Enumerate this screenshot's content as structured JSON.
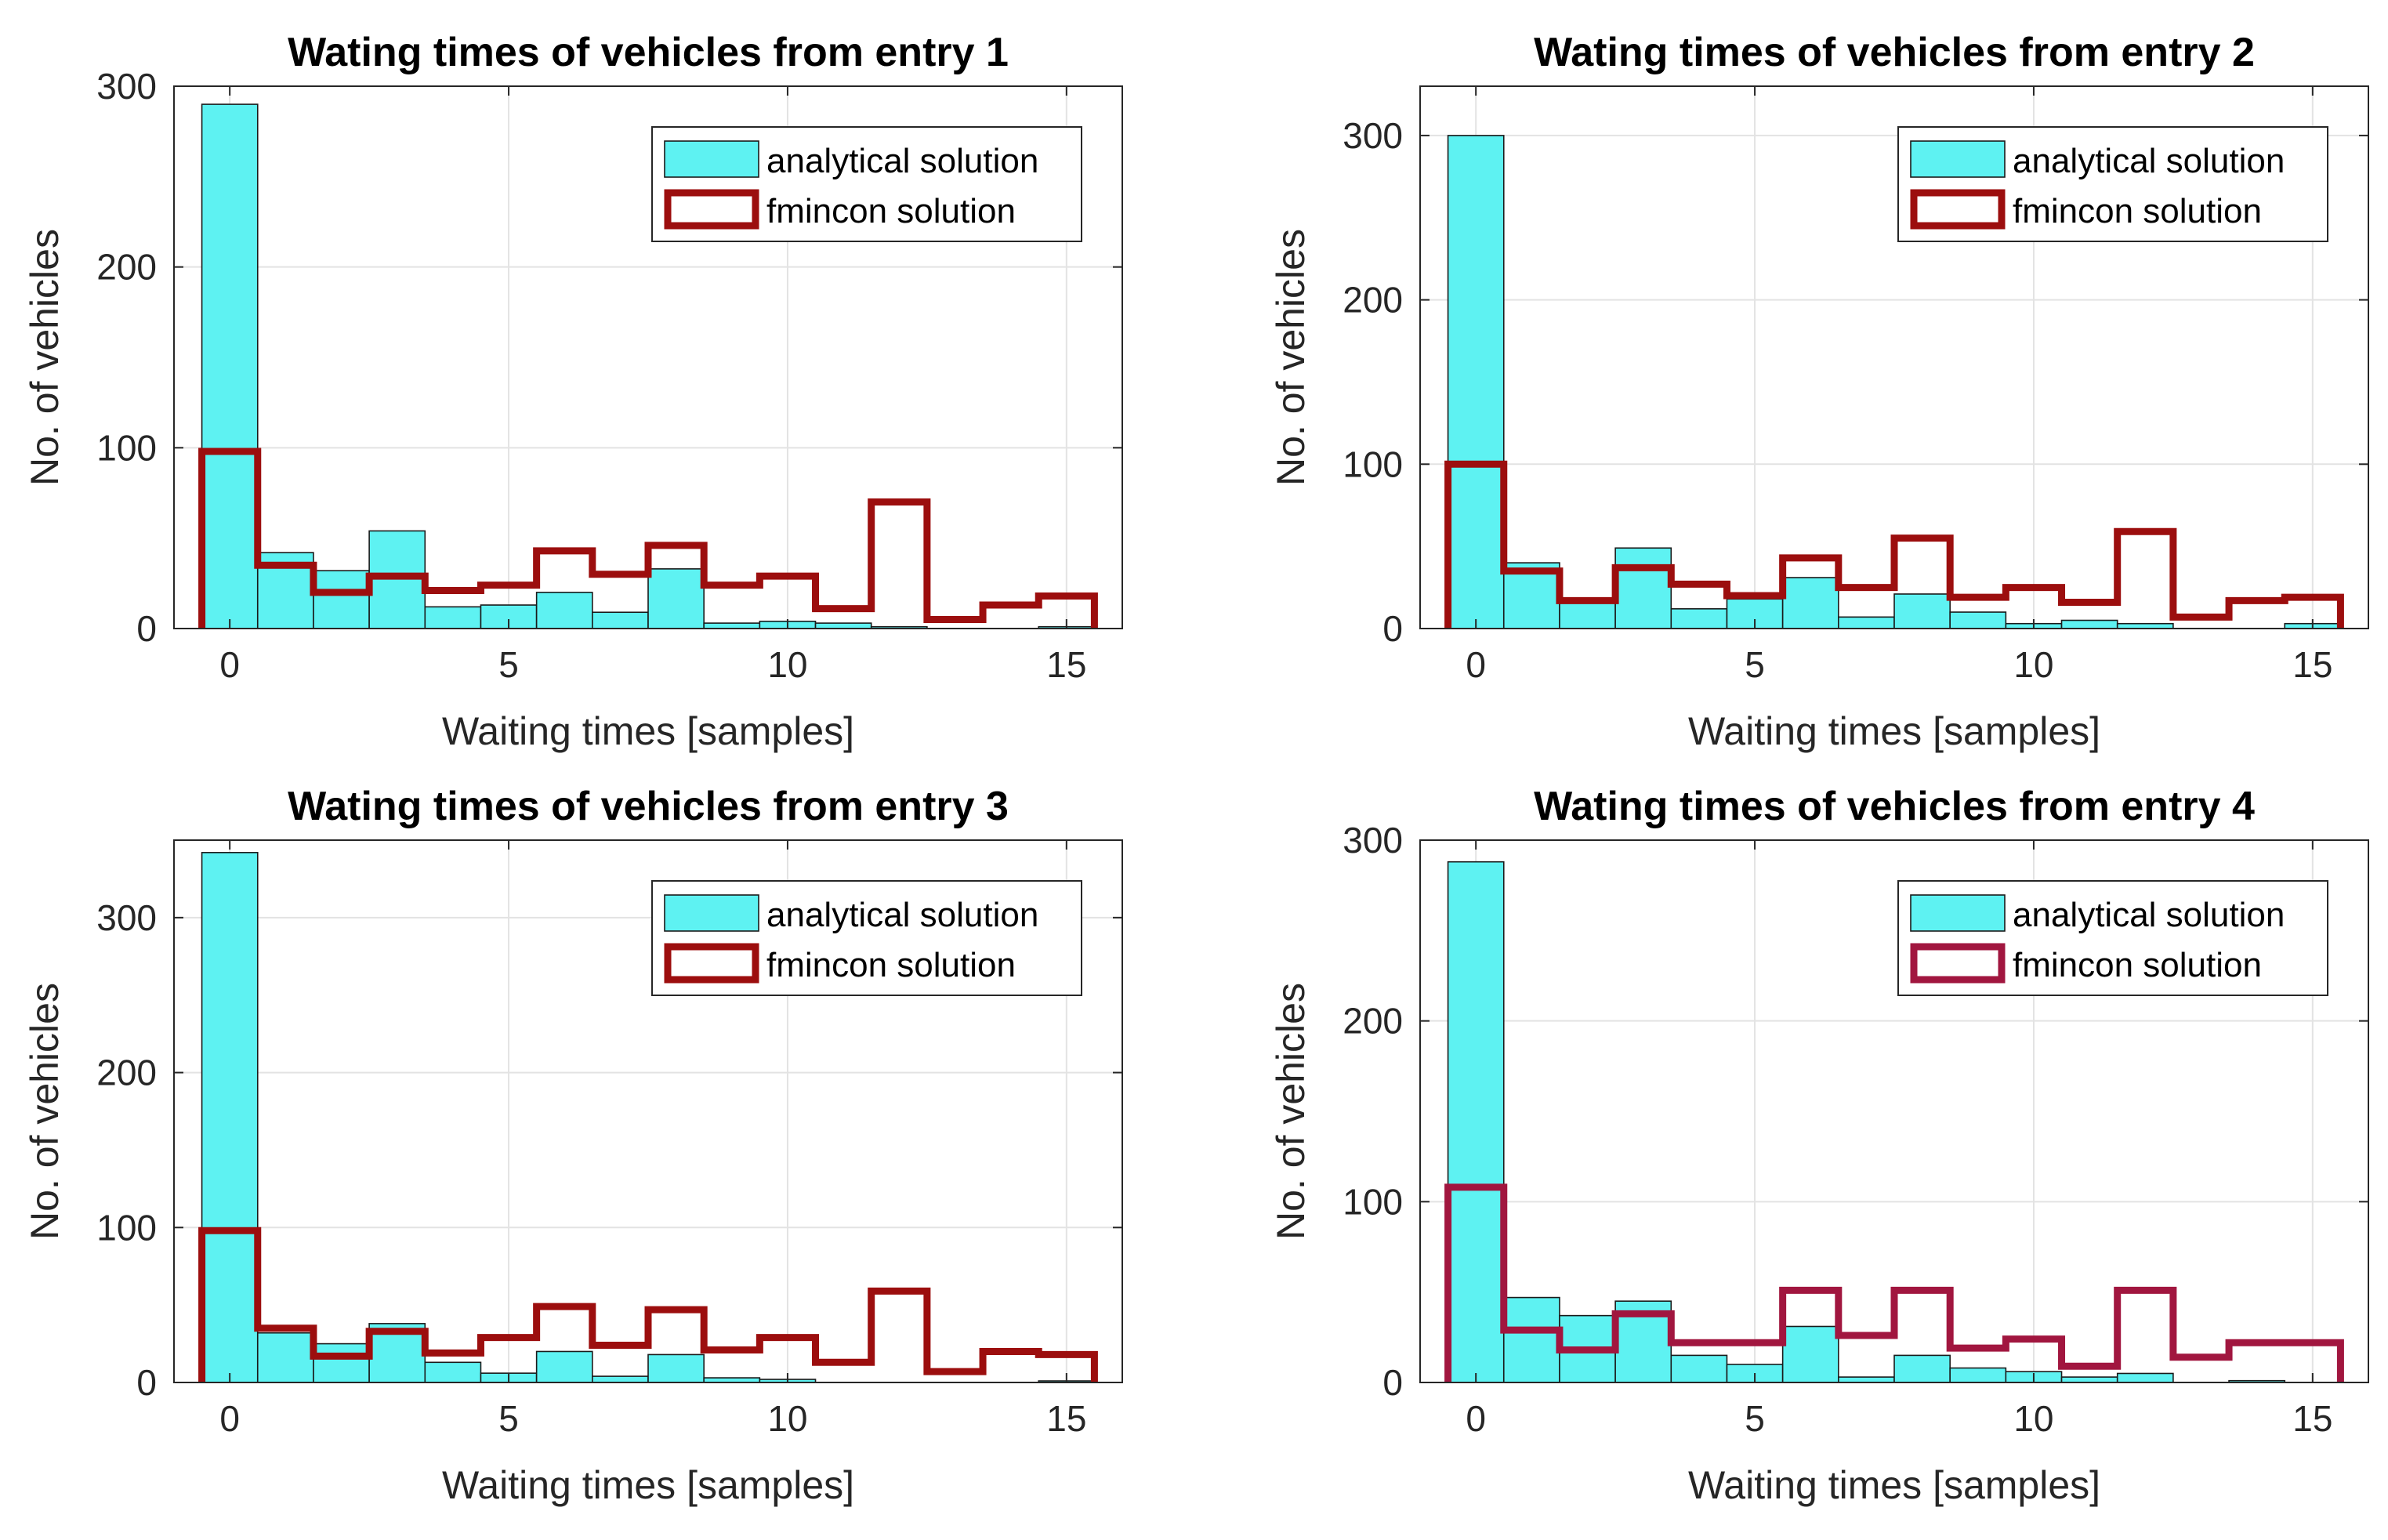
{
  "chart_data": [
    {
      "type": "bar",
      "title": "Wating times of vehicles from entry 1",
      "xlabel": "Waiting times [samples]",
      "ylabel": "No. of vehicles",
      "xlim": [
        -1,
        16
      ],
      "ylim": [
        0,
        300
      ],
      "xticks": [
        0,
        5,
        10,
        15
      ],
      "yticks": [
        0,
        100,
        200,
        300
      ],
      "grid": true,
      "legend_position": "top-right",
      "bins": [
        0,
        1,
        2,
        3,
        4,
        5,
        6,
        7,
        8,
        9,
        10,
        11,
        12,
        13,
        14,
        15
      ],
      "series": [
        {
          "name": "analytical solution",
          "style": "filled-bar",
          "color": "#5ef2f2",
          "values": [
            290,
            42,
            32,
            54,
            12,
            13,
            20,
            9,
            33,
            3,
            4,
            3,
            1,
            0,
            0,
            1
          ]
        },
        {
          "name": "fmincon solution",
          "style": "stairs",
          "color": "#9c0e0e",
          "values": [
            98,
            35,
            20,
            29,
            21,
            24,
            43,
            30,
            46,
            24,
            29,
            11,
            70,
            5,
            13,
            18
          ]
        }
      ]
    },
    {
      "type": "bar",
      "title": "Wating times of vehicles from entry 2",
      "xlabel": "Waiting times [samples]",
      "ylabel": "No. of vehicles",
      "xlim": [
        -1,
        16
      ],
      "ylim": [
        0,
        330
      ],
      "xticks": [
        0,
        5,
        10,
        15
      ],
      "yticks": [
        0,
        100,
        200,
        300
      ],
      "grid": true,
      "legend_position": "top-right",
      "bins": [
        0,
        1,
        2,
        3,
        4,
        5,
        6,
        7,
        8,
        9,
        10,
        11,
        12,
        13,
        14,
        15
      ],
      "series": [
        {
          "name": "analytical solution",
          "style": "filled-bar",
          "color": "#5ef2f2",
          "values": [
            300,
            40,
            18,
            49,
            12,
            18,
            31,
            7,
            21,
            10,
            3,
            5,
            3,
            0,
            0,
            3
          ]
        },
        {
          "name": "fmincon solution",
          "style": "stairs",
          "color": "#9c0e0e",
          "values": [
            100,
            35,
            17,
            37,
            27,
            20,
            43,
            25,
            55,
            19,
            25,
            16,
            59,
            7,
            17,
            19
          ]
        }
      ]
    },
    {
      "type": "bar",
      "title": "Wating times of vehicles from entry 3",
      "xlabel": "Waiting times [samples]",
      "ylabel": "No. of vehicles",
      "xlim": [
        -1,
        16
      ],
      "ylim": [
        0,
        350
      ],
      "xticks": [
        0,
        5,
        10,
        15
      ],
      "yticks": [
        0,
        100,
        200,
        300
      ],
      "grid": true,
      "legend_position": "top-right",
      "bins": [
        0,
        1,
        2,
        3,
        4,
        5,
        6,
        7,
        8,
        9,
        10,
        11,
        12,
        13,
        14,
        15
      ],
      "series": [
        {
          "name": "analytical solution",
          "style": "filled-bar",
          "color": "#5ef2f2",
          "values": [
            342,
            32,
            25,
            38,
            13,
            6,
            20,
            4,
            18,
            3,
            2,
            0,
            0,
            0,
            0,
            1
          ]
        },
        {
          "name": "fmincon solution",
          "style": "stairs",
          "color": "#9c0e0e",
          "values": [
            98,
            35,
            17,
            33,
            19,
            29,
            49,
            24,
            47,
            21,
            29,
            13,
            59,
            7,
            20,
            18
          ]
        }
      ]
    },
    {
      "type": "bar",
      "title": "Wating times of vehicles from entry 4",
      "xlabel": "Waiting times [samples]",
      "ylabel": "No. of vehicles",
      "xlim": [
        -1,
        16
      ],
      "ylim": [
        0,
        300
      ],
      "xticks": [
        0,
        5,
        10,
        15
      ],
      "yticks": [
        0,
        100,
        200,
        300
      ],
      "grid": true,
      "legend_position": "top-right",
      "bins": [
        0,
        1,
        2,
        3,
        4,
        5,
        6,
        7,
        8,
        9,
        10,
        11,
        12,
        13,
        14,
        15
      ],
      "series": [
        {
          "name": "analytical solution",
          "style": "filled-bar",
          "color": "#5ef2f2",
          "values": [
            288,
            47,
            37,
            45,
            15,
            10,
            31,
            3,
            15,
            8,
            6,
            3,
            5,
            0,
            1,
            0
          ]
        },
        {
          "name": "fmincon solution",
          "style": "stairs",
          "color": "#a1163f",
          "values": [
            108,
            29,
            18,
            38,
            22,
            22,
            51,
            26,
            51,
            19,
            24,
            9,
            51,
            14,
            22,
            22
          ]
        }
      ]
    }
  ]
}
